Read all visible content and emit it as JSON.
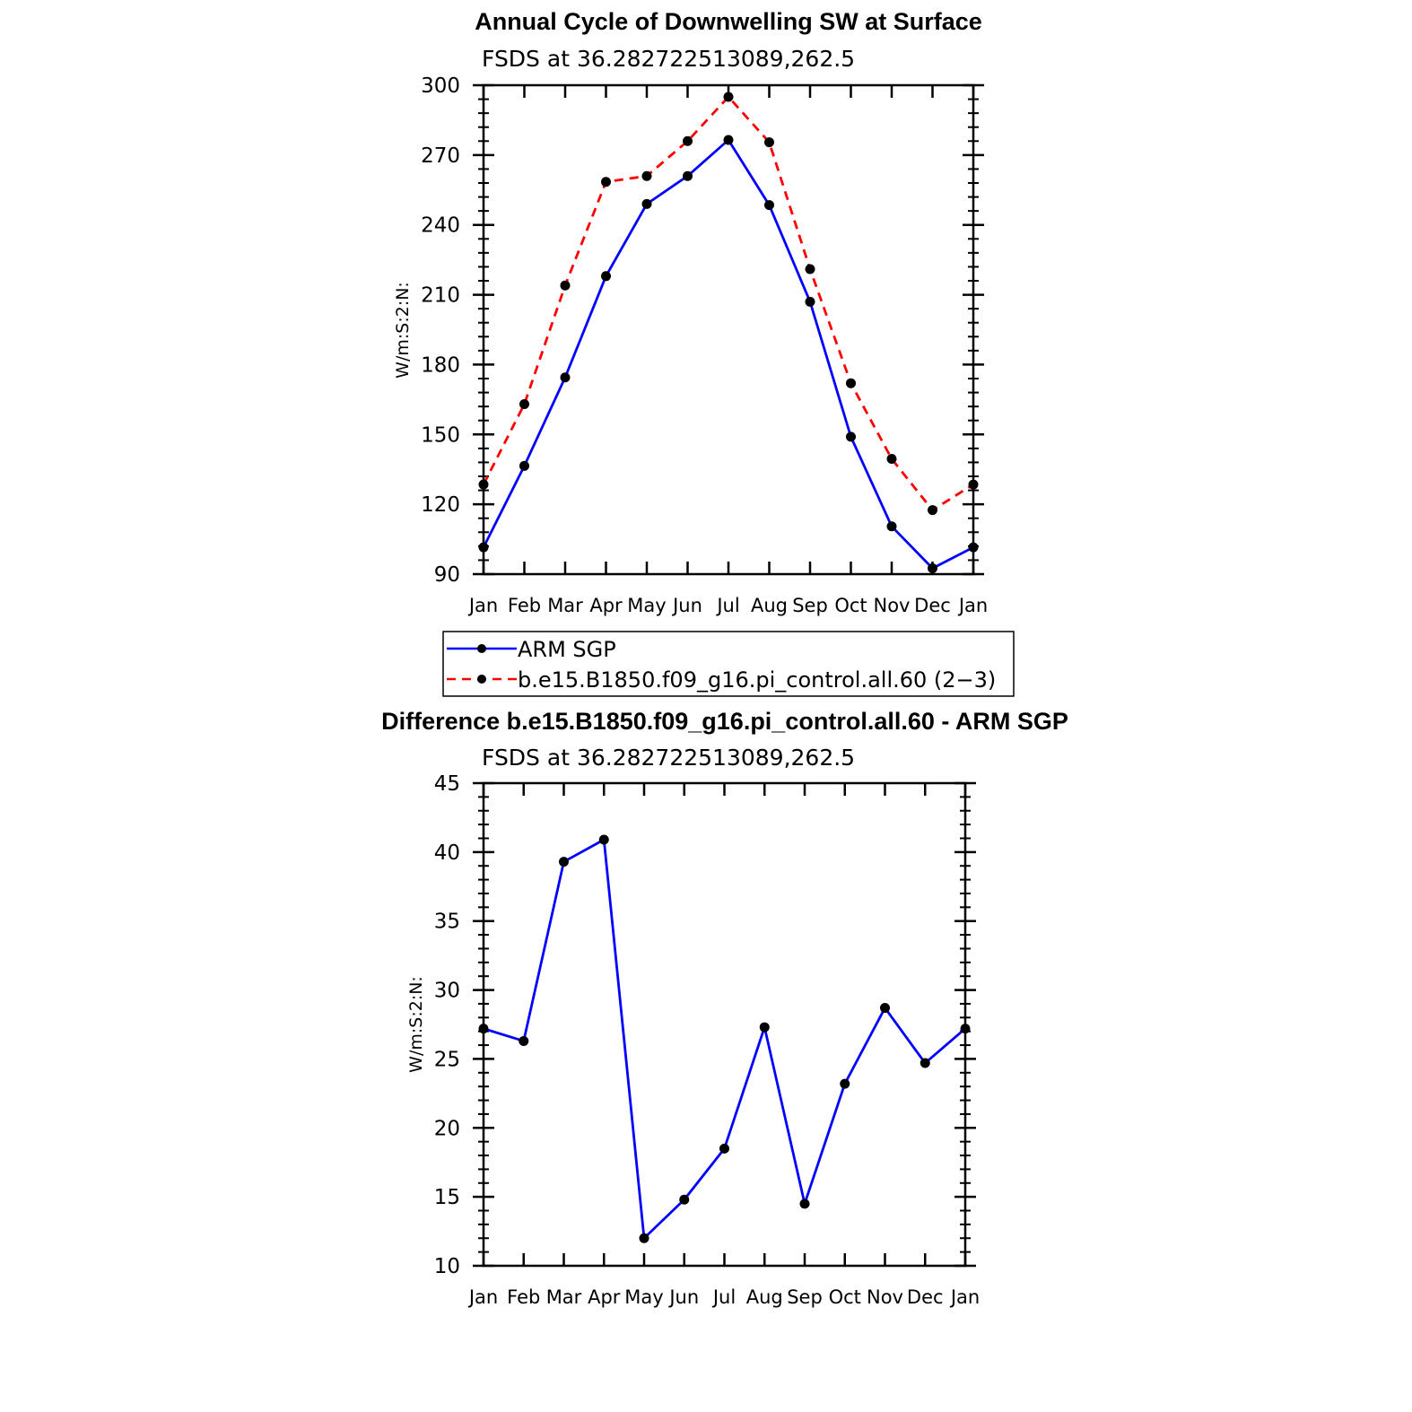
{
  "chart_data": [
    {
      "type": "line",
      "title": "Annual Cycle of Downwelling SW at Surface",
      "subtitle": "FSDS at 36.282722513089,262.5",
      "ylabel": "W/m:S:2:N:",
      "xlabel": "",
      "categories": [
        "Jan",
        "Feb",
        "Mar",
        "Apr",
        "May",
        "Jun",
        "Jul",
        "Aug",
        "Sep",
        "Oct",
        "Nov",
        "Dec",
        "Jan"
      ],
      "ylim": [
        90,
        300
      ],
      "yticks": [
        90,
        120,
        150,
        180,
        210,
        240,
        270,
        300
      ],
      "grid": false,
      "legend_position": "below",
      "series": [
        {
          "name": "ARM SGP",
          "color": "#0000ff",
          "dash": "solid",
          "values": [
            101.5,
            136.5,
            174.5,
            218,
            249,
            261,
            276.5,
            248.5,
            207,
            149,
            110.5,
            92.5,
            101.5
          ]
        },
        {
          "name": "b.e15.B1850.f09_g16.pi_control.all.60 (2−3)",
          "color": "#ff0000",
          "dash": "dashed",
          "values": [
            128.5,
            163,
            214,
            258.5,
            261,
            276,
            295,
            275.5,
            221,
            172,
            139.5,
            117.5,
            128.5
          ]
        }
      ]
    },
    {
      "type": "line",
      "title": "Difference b.e15.B1850.f09_g16.pi_control.all.60 - ARM SGP",
      "subtitle": "FSDS at 36.282722513089,262.5",
      "ylabel": "W/m:S:2:N:",
      "xlabel": "",
      "categories": [
        "Jan",
        "Feb",
        "Mar",
        "Apr",
        "May",
        "Jun",
        "Jul",
        "Aug",
        "Sep",
        "Oct",
        "Nov",
        "Dec",
        "Jan"
      ],
      "ylim": [
        10,
        45
      ],
      "yticks": [
        10,
        15,
        20,
        25,
        30,
        35,
        40,
        45
      ],
      "grid": false,
      "series": [
        {
          "color": "#0000ff",
          "dash": "solid",
          "values": [
            27.2,
            26.3,
            39.3,
            40.9,
            12.0,
            14.8,
            18.5,
            27.3,
            14.5,
            23.2,
            28.7,
            24.7,
            27.2
          ]
        }
      ]
    }
  ]
}
